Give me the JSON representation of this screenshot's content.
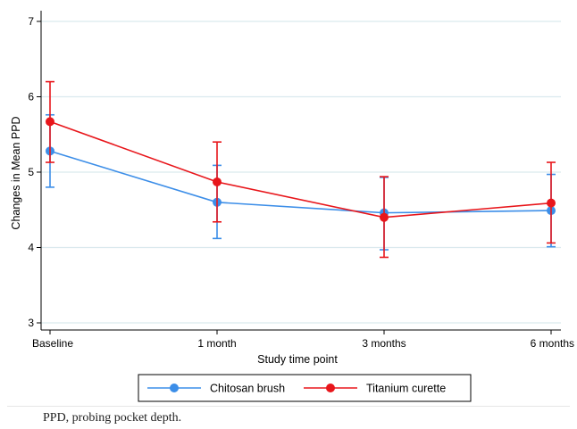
{
  "chart_data": {
    "type": "line",
    "categories": [
      "Baseline",
      "1 month",
      "3 months",
      "6 months"
    ],
    "xlabel": "Study time point",
    "ylabel": "Changes in Mean PPD",
    "ylim": [
      3,
      7
    ],
    "yticks": [
      3,
      4,
      5,
      6,
      7
    ],
    "grid": true,
    "legend_position": "bottom",
    "series": [
      {
        "name": "Chitosan brush",
        "color": "#3c8ee8",
        "values": [
          5.28,
          4.6,
          4.46,
          4.49
        ],
        "lower": [
          4.8,
          4.12,
          3.97,
          4.01
        ],
        "upper": [
          5.76,
          5.09,
          4.93,
          4.97
        ]
      },
      {
        "name": "Titanium curette",
        "color": "#e8161b",
        "values": [
          5.67,
          4.87,
          4.4,
          4.59
        ],
        "lower": [
          5.13,
          4.34,
          3.87,
          4.06
        ],
        "upper": [
          6.2,
          5.4,
          4.94,
          5.13
        ]
      }
    ]
  },
  "caption": "PPD, probing pocket depth."
}
